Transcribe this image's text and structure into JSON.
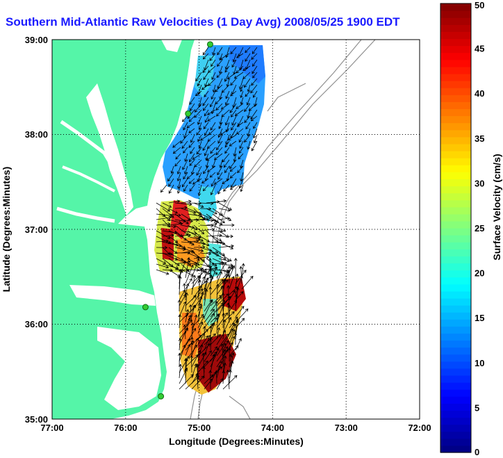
{
  "title": "Southern Mid-Atlantic Raw Velocities (1 Day Avg) 2008/05/25 1900 EDT",
  "xlabel": "Longitude (Degrees:Minutes)",
  "ylabel": "Latitude (Degrees:Minutes)",
  "x_ticks": [
    "77:00",
    "76:00",
    "75:00",
    "74:00",
    "73:00",
    "72:00"
  ],
  "y_ticks": [
    "39:00",
    "38:00",
    "37:00",
    "36:00",
    "35:00"
  ],
  "colorbar": {
    "label": "Surface Velocity (cm/s)",
    "ticks": [
      "0",
      "5",
      "10",
      "15",
      "20",
      "25",
      "30",
      "35",
      "40",
      "45",
      "50"
    ],
    "range": [
      0,
      50
    ],
    "colormap": "jet"
  },
  "colors": {
    "land": "#55f5a8",
    "water": "#ffffff",
    "title": "#1a1aff",
    "contour": "#909090",
    "station": "#33cc33"
  },
  "map_data": {
    "lon_range": [
      -77,
      -72
    ],
    "lat_range": [
      35,
      39
    ],
    "grid": "dotted",
    "stations": [
      {
        "lon": -74.85,
        "lat": 38.95
      },
      {
        "lon": -75.15,
        "lat": 38.22
      },
      {
        "lon": -75.73,
        "lat": 36.18
      },
      {
        "lon": -75.52,
        "lat": 35.24
      }
    ]
  }
}
